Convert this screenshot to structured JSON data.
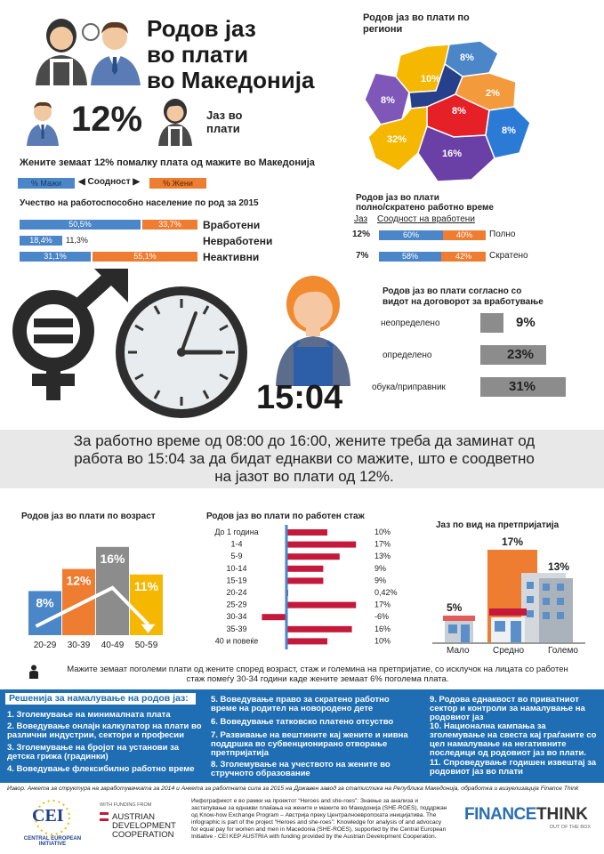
{
  "header": {
    "title_line1": "Родов јаз",
    "title_line2": "во плати",
    "title_line3": "во Македонија",
    "gap_value": "12%",
    "gap_label_1": "Јаз во",
    "gap_label_2": "плати",
    "subtitle": "Жените земаат 12% помалку плата од мажите во Македонија"
  },
  "legend": {
    "men": "% Мажи",
    "ratio": "Соодност",
    "women": "% Жени"
  },
  "participation": {
    "title": "Учество на работоспособно население по род за 2015",
    "rows": [
      {
        "label": "Вработени",
        "men": "50,5%",
        "women": "33,7%",
        "men_value": 50.5,
        "women_value": 33.7
      },
      {
        "label": "Невработени",
        "men": "18,4%",
        "women": "11,3%",
        "men_value": 18.4,
        "women_value": 11.3
      },
      {
        "label": "Неактивни",
        "men": "31,1%",
        "women": "55,1%",
        "men_value": 31.1,
        "women_value": 55.1
      }
    ]
  },
  "regions": {
    "title_1": "Родов јаз во плати по",
    "title_2": "региони",
    "values": [
      "8%",
      "10%",
      "2%",
      "8%",
      "8%",
      "8%",
      "32%",
      "16%"
    ]
  },
  "fulltime": {
    "title_1": "Родов јаз во плати",
    "title_2": "полно/скратено работно време",
    "col_gap": "Јаз",
    "col_ratio": "Соодност на вработени",
    "rows": [
      {
        "gap": "12%",
        "men": "60%",
        "women": "40%",
        "label": "Полно",
        "men_value": 60
      },
      {
        "gap": "7%",
        "men": "58%",
        "women": "42%",
        "label": "Скратено",
        "men_value": 58
      }
    ]
  },
  "clock": {
    "time": "15:04"
  },
  "contract": {
    "title_1": "Родов јаз во плати согласно со",
    "title_2": "видот на договорот за вработување",
    "rows": [
      {
        "label": "неопределено",
        "value": "9%"
      },
      {
        "label": "определено",
        "value": "23%"
      },
      {
        "label": "обука/приправник",
        "value": "31%"
      }
    ]
  },
  "statement": {
    "line1": "За работно време од 08:00 до 16:00, жените треба да заминат од",
    "line2": "работа во 15:04 за да бидат еднакви со мажите, што е соодветно",
    "line3": "на јазот во плати од 12%."
  },
  "age": {
    "title": "Родов јаз во плати по возраст",
    "bars": [
      {
        "label": "20-29",
        "value": "8%",
        "num": 8,
        "color": "#4a86c8"
      },
      {
        "label": "30-39",
        "value": "12%",
        "num": 12,
        "color": "#ee7d31"
      },
      {
        "label": "40-49",
        "value": "16%",
        "num": 16,
        "color": "#8c8c8c"
      },
      {
        "label": "50-59",
        "value": "11%",
        "num": 11,
        "color": "#f5b700"
      }
    ]
  },
  "stazh": {
    "title": "Родов јаз во плати по работен стаж",
    "rows": [
      {
        "label": "До 1 година",
        "value": "10%",
        "num": 10
      },
      {
        "label": "1-4",
        "value": "17%",
        "num": 17
      },
      {
        "label": "5-9",
        "value": "13%",
        "num": 13
      },
      {
        "label": "10-14",
        "value": "9%",
        "num": 9
      },
      {
        "label": "15-19",
        "value": "9%",
        "num": 9
      },
      {
        "label": "20-24",
        "value": "0,42%",
        "num": 0.42
      },
      {
        "label": "25-29",
        "value": "17%",
        "num": 17
      },
      {
        "label": "30-34",
        "value": "-6%",
        "num": -6
      },
      {
        "label": "35-39",
        "value": "16%",
        "num": 16
      },
      {
        "label": "40 и повеќе",
        "value": "10%",
        "num": 10
      }
    ]
  },
  "company": {
    "title": "Јаз по вид на претпријатија",
    "items": [
      {
        "label": "Мало",
        "value": "5%"
      },
      {
        "label": "Средно",
        "value": "17%"
      },
      {
        "label": "Големо",
        "value": "13%"
      }
    ]
  },
  "note": {
    "line1": "Мажите земаат поголеми плати од жените според возраст, стаж и големина на претпријатие, со исклучок на лицата со работен",
    "line2": "стаж помеѓу 30-34 години каде жените земаат 6% поголема плата."
  },
  "solutions": {
    "title": "Решенија за намалување на родов јаз:",
    "items": [
      "1. Зголемување на минималната плата",
      "2. Воведување онлајн калкулатор на плати во различни индустрии, сектори и професии",
      "3. Зголемување на бројот на установи за детска грижа (градинки)",
      "4. Воведување флексибилно работно време",
      "5. Воведување право за скратено работно време на родител на новороденo дете",
      "6. Воведување татковско платено отсуство",
      "7. Развивање на вештините кај жените и нивна поддршка во субвенционирано отворање претпријатија",
      "8. Зголемување на учеството на жените во стручното образование",
      "9. Родова еднаквост во приватниот сектор и контроли за намалување на родовиот јаз",
      "10. Национална кампања за зголемување на свеста кај граѓаните со цел намалување на негативните последици од родовиот јаз во плати.",
      "11. Спроведување годишен извештај за родовиот јаз во плати"
    ]
  },
  "footer": {
    "source": "Извор: Анкета за структура на заработувачката за 2014 и Анкета за работната сила за 2015 на Државен завод за статистика на Република Македонија, обработка и визуелизација Finance Think",
    "cei_name": "CEI",
    "cei_full": "CENTRAL EUROPEAN INITIATIVE",
    "funding": "WITH FUNDING FROM",
    "austrian_1": "AUSTRIAN",
    "austrian_2": "DEVELOPMENT",
    "austrian_3": "COOPERATION",
    "project_text": "Инфографикот е во рамки на проектот “Heroes and she-roes”: Знаење за анализа и застапување за еднакви плаќања на жените и мажите во Македонија (SHE-ROES), поддржан од Know-how Exchange Program – Австрија преку Централноевропската иницијатива. The infographic is part of the project “Heroes and she-roes”: Knowledge for analysis of and advocacy for equal pay for women and men in Macedonia (SHE-ROES), supported by the Central European Initiative - CEI KEP AUSTRIA with funding provided by the Austrian Development Cooperation.",
    "ft_1": "FINANCE",
    "ft_2": "THINK",
    "ft_sub": "OUT OF THE BOX"
  },
  "colors": {
    "men": "#4a86c8",
    "women": "#ee7d31",
    "panel": "#1f6db3",
    "dark": "#2c2c2c",
    "red": "#c4193a"
  }
}
